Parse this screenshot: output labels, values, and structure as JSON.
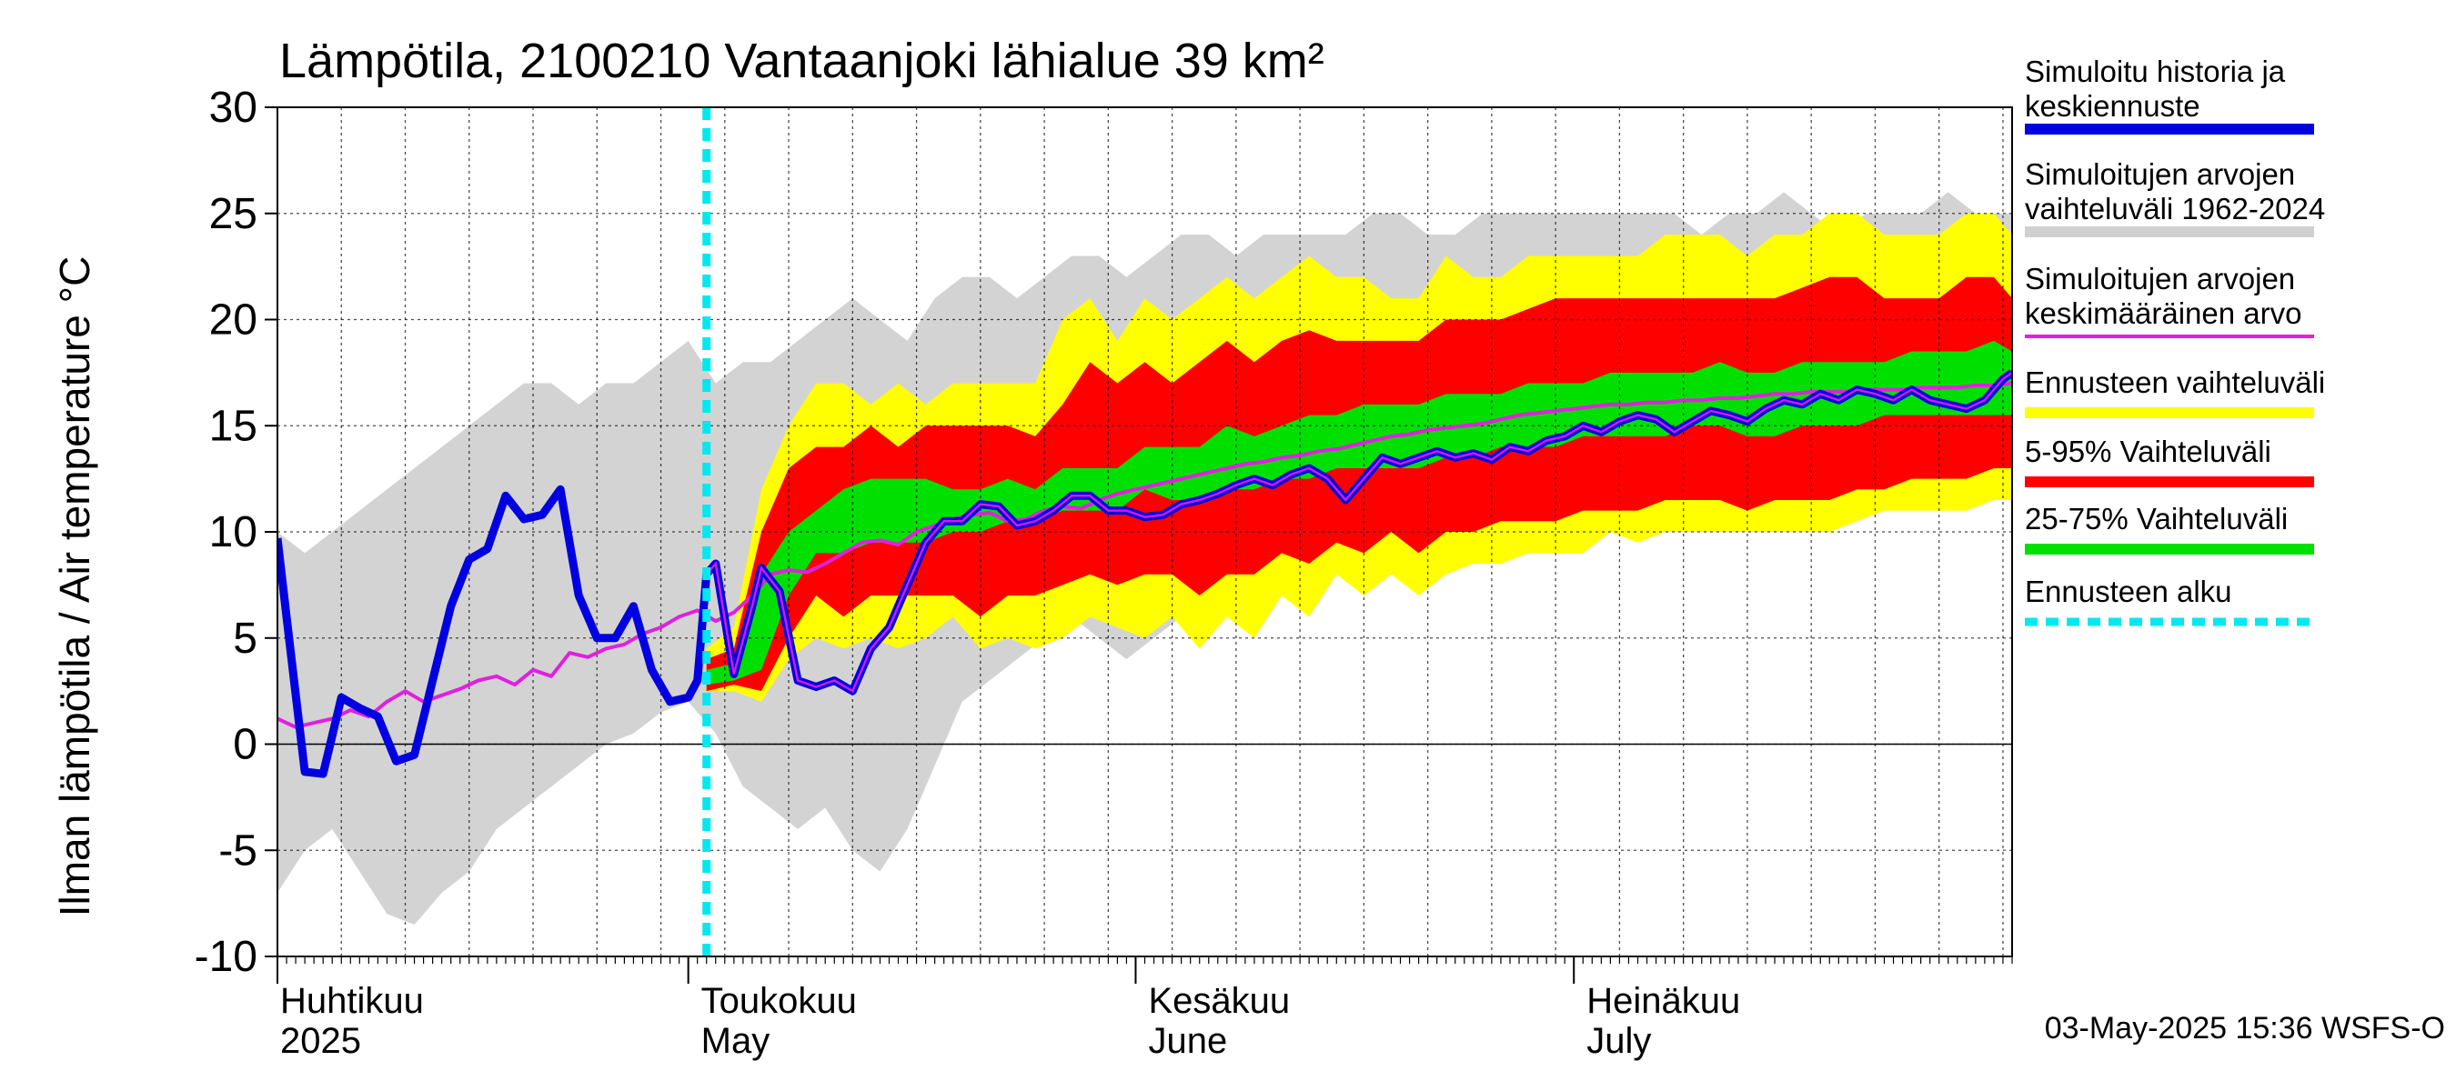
{
  "chart_data": {
    "type": "area",
    "title": "Lämpötila, 2100210 Vantaanjoki lähialue 39 km²",
    "ylabel": "Ilman lämpötila / Air temperature   °C",
    "ylim": [
      -10,
      30
    ],
    "yticks": [
      -10,
      -5,
      0,
      5,
      10,
      15,
      20,
      25,
      30
    ],
    "ytick_labels": [
      "-10",
      "-5",
      "0",
      "5",
      "10",
      "15",
      "20",
      "25",
      "30"
    ],
    "xlim_days": [
      0,
      190
    ],
    "forecast_start_day": 47,
    "month_ticks": [
      {
        "day": 0,
        "label1": "Huhtikuu",
        "label2": "2025"
      },
      {
        "day": 45,
        "label1": "Toukokuu",
        "label2": "May"
      },
      {
        "day": 94,
        "label1": "Kesäkuu",
        "label2": "June"
      },
      {
        "day": 142,
        "label1": "Heinäkuu",
        "label2": "July"
      }
    ],
    "footer": "03-May-2025 15:36 WSFS-O",
    "legend": [
      {
        "label1": "Simuloitu historia ja",
        "label2": "keskiennuste",
        "color": "#0000e0",
        "style": "thick"
      },
      {
        "label1": "Simuloitujen arvojen",
        "label2": "vaihteluväli 1962-2024",
        "color": "#d0d0d0",
        "style": "thick"
      },
      {
        "label1": "Simuloitujen arvojen",
        "label2": "keskimääräinen arvo",
        "color": "#e020e0",
        "style": "thin"
      },
      {
        "label1": "Ennusteen vaihteluväli",
        "label2": "",
        "color": "#ffff00",
        "style": "thick"
      },
      {
        "label1": "5-95% Vaihteluväli",
        "label2": "",
        "color": "#ff0000",
        "style": "thick"
      },
      {
        "label1": "25-75% Vaihteluväli",
        "label2": "",
        "color": "#00e000",
        "style": "thick"
      },
      {
        "label1": "Ennusteen alku",
        "label2": "",
        "color": "#00e8f0",
        "style": "dashed"
      }
    ],
    "colors": {
      "history_band": "#d3d3d3",
      "forecast_range": "#ffff00",
      "p5_95": "#ff0000",
      "p25_75": "#00e000",
      "median": "#0000e0",
      "mean": "#e020e0",
      "forecast_start": "#00e8f0",
      "zero_line": "#000000"
    },
    "series": {
      "history_band_x": [
        0,
        3,
        6,
        9,
        12,
        15,
        18,
        21,
        24,
        27,
        30,
        33,
        36,
        39,
        42,
        45,
        48,
        51,
        54,
        57,
        60,
        63,
        66,
        69,
        72,
        75,
        78,
        81,
        84,
        87,
        90,
        93,
        96,
        99,
        102,
        105,
        108,
        111,
        114,
        117,
        120,
        123,
        126,
        129,
        132,
        135,
        138,
        141,
        144,
        147,
        150,
        153,
        156,
        159,
        162,
        165,
        168,
        171,
        174,
        177,
        180,
        183,
        186,
        190
      ],
      "history_band_lo": [
        -7,
        -5,
        -4,
        -6,
        -8,
        -8.5,
        -7,
        -6,
        -4,
        -3,
        -2,
        -1,
        0,
        0.5,
        1.5,
        2,
        0.5,
        -2,
        -3,
        -4,
        -3,
        -5,
        -6,
        -4,
        -1,
        2,
        3,
        4,
        5,
        6,
        5,
        4,
        5,
        6,
        7,
        8,
        8,
        9,
        9,
        9,
        10,
        10,
        10,
        10,
        10,
        10,
        10,
        10,
        10,
        10,
        10,
        10,
        10,
        11,
        11,
        12,
        11,
        11,
        12,
        12,
        12,
        12,
        12,
        13
      ],
      "history_band_hi": [
        10,
        9,
        10,
        11,
        12,
        13,
        14,
        15,
        16,
        17,
        17,
        16,
        17,
        17,
        18,
        19,
        17,
        18,
        18,
        19,
        20,
        21,
        20,
        19,
        21,
        22,
        22,
        21,
        22,
        23,
        23,
        22,
        23,
        24,
        24,
        23,
        24,
        24,
        24,
        24,
        25,
        25,
        24,
        24,
        25,
        25,
        25,
        25,
        25,
        25,
        25,
        25,
        24,
        25,
        25,
        26,
        25,
        24,
        25,
        25,
        25,
        26,
        25,
        25
      ],
      "forecast_x": [
        47,
        50,
        53,
        56,
        59,
        62,
        65,
        68,
        71,
        74,
        77,
        80,
        83,
        86,
        89,
        92,
        95,
        98,
        101,
        104,
        107,
        110,
        113,
        116,
        119,
        122,
        125,
        128,
        131,
        134,
        137,
        140,
        143,
        146,
        149,
        152,
        155,
        158,
        161,
        164,
        167,
        170,
        173,
        176,
        179,
        182,
        185,
        188,
        190
      ],
      "range_lo": [
        2.5,
        2.5,
        2,
        4,
        5,
        4.5,
        5,
        4.5,
        5,
        6,
        4.5,
        5,
        4.5,
        5,
        6,
        5.5,
        5,
        6,
        4.5,
        6,
        5,
        7,
        6,
        8,
        7,
        8,
        7,
        8,
        8.5,
        8.5,
        9,
        9,
        9,
        10,
        9.5,
        10,
        10,
        10,
        10,
        10,
        10,
        10,
        10.5,
        11,
        11,
        11,
        11,
        11.5,
        11.5
      ],
      "range_hi": [
        4.5,
        5.5,
        12,
        15,
        17,
        17,
        16,
        17,
        16,
        17,
        17,
        17,
        17,
        20,
        21,
        19,
        21,
        20,
        21,
        22,
        21,
        22,
        23,
        22,
        22,
        21,
        21,
        23,
        22,
        22,
        23,
        23,
        23,
        23,
        23,
        24,
        24,
        24,
        23,
        24,
        24,
        25,
        25,
        24,
        24,
        24,
        25,
        25,
        24
      ],
      "p5_lo": [
        2.5,
        2.8,
        2.5,
        5,
        7,
        6,
        7,
        7,
        7,
        7,
        6,
        7,
        7,
        7.5,
        8,
        7.5,
        8,
        8,
        7,
        8,
        8,
        9,
        8.5,
        9.5,
        9,
        10,
        9,
        10,
        10,
        10.5,
        10.5,
        10.5,
        11,
        11,
        11,
        11.5,
        11.5,
        11.5,
        11,
        11.5,
        11.5,
        11.5,
        12,
        12,
        12.5,
        12.5,
        12.5,
        13,
        13
      ],
      "p5_hi": [
        4,
        4.5,
        10,
        13,
        14,
        14,
        15,
        14,
        15,
        15,
        15,
        15,
        14.5,
        16,
        18,
        17,
        18,
        17,
        18,
        19,
        18,
        19,
        19.5,
        19,
        19,
        19,
        19,
        20,
        20,
        20,
        20.5,
        21,
        21,
        21,
        21,
        21,
        21,
        21,
        21,
        21,
        21.5,
        22,
        22,
        21,
        21,
        21,
        22,
        22,
        21
      ],
      "p25_lo": [
        2.8,
        3,
        3.5,
        7,
        9,
        9,
        9.5,
        9.5,
        9.5,
        10,
        10,
        10.5,
        10.5,
        11,
        11,
        11,
        12,
        11.5,
        11.5,
        12,
        12,
        12.5,
        12.5,
        13,
        13,
        13,
        13,
        13.5,
        13.5,
        14,
        14,
        14,
        14.5,
        14.5,
        14.5,
        14.5,
        15,
        15,
        14.5,
        14.5,
        15,
        15,
        15,
        15.5,
        15.5,
        15.5,
        15.5,
        15.5,
        15.5
      ],
      "p25_hi": [
        3.5,
        3.8,
        8,
        10,
        11,
        12,
        12.5,
        12.5,
        12.5,
        12,
        12,
        12.5,
        12,
        13,
        13,
        13,
        14,
        14,
        14,
        15,
        14.5,
        15,
        15.5,
        15.5,
        16,
        16,
        16,
        16.5,
        16.5,
        16.5,
        17,
        17,
        17,
        17.5,
        17.5,
        17.5,
        17.5,
        18,
        17.5,
        17.5,
        18,
        18,
        18,
        18,
        18.5,
        18.5,
        18.5,
        19,
        18.5
      ],
      "median_x": [
        0,
        1,
        3,
        5,
        7,
        9,
        11,
        13,
        15,
        17,
        19,
        21,
        23,
        25,
        27,
        29,
        31,
        33,
        35,
        37,
        39,
        41,
        43,
        45,
        46,
        47,
        48,
        50,
        52,
        53,
        55,
        57,
        59,
        61,
        63,
        65,
        67,
        69,
        71,
        73,
        75,
        77,
        79,
        81,
        83,
        85,
        87,
        89,
        91,
        93,
        95,
        97,
        99,
        101,
        103,
        105,
        107,
        109,
        111,
        113,
        115,
        117,
        119,
        121,
        123,
        125,
        127,
        129,
        131,
        133,
        135,
        137,
        139,
        141,
        143,
        145,
        147,
        149,
        151,
        153,
        155,
        157,
        159,
        161,
        163,
        165,
        167,
        169,
        171,
        173,
        175,
        177,
        179,
        181,
        183,
        185,
        187,
        189,
        190
      ],
      "median_y": [
        9.7,
        6,
        -1.3,
        -1.4,
        2.2,
        1.7,
        1.3,
        -0.8,
        -0.5,
        3,
        6.5,
        8.7,
        9.2,
        11.7,
        10.6,
        10.8,
        12,
        7,
        5,
        5,
        6.5,
        3.5,
        2,
        2.2,
        3,
        8,
        8.5,
        3.3,
        6.5,
        8.3,
        7.2,
        3,
        2.7,
        3,
        2.5,
        4.5,
        5.5,
        7.5,
        9.5,
        10.5,
        10.5,
        11.3,
        11.2,
        10.3,
        10.5,
        11,
        11.7,
        11.7,
        11,
        11,
        10.7,
        10.8,
        11.3,
        11.5,
        11.8,
        12.2,
        12.5,
        12.2,
        12.7,
        13,
        12.5,
        11.5,
        12.5,
        13.5,
        13.2,
        13.5,
        13.8,
        13.5,
        13.7,
        13.4,
        14,
        13.8,
        14.3,
        14.5,
        15,
        14.7,
        15.2,
        15.5,
        15.3,
        14.7,
        15.2,
        15.7,
        15.5,
        15.2,
        15.8,
        16.2,
        16,
        16.5,
        16.2,
        16.7,
        16.5,
        16.2,
        16.7,
        16.2,
        16,
        15.8,
        16.2,
        17.2,
        17.5
      ],
      "mean_x": [
        0,
        2,
        4,
        6,
        8,
        10,
        12,
        14,
        16,
        18,
        20,
        22,
        24,
        26,
        28,
        30,
        32,
        34,
        36,
        38,
        40,
        42,
        44,
        46,
        48,
        50,
        52,
        54,
        56,
        58,
        60,
        62,
        64,
        66,
        68,
        70,
        72,
        74,
        76,
        78,
        80,
        82,
        84,
        86,
        88,
        90,
        92,
        94,
        96,
        98,
        100,
        102,
        104,
        106,
        108,
        110,
        112,
        114,
        116,
        118,
        120,
        122,
        124,
        126,
        128,
        130,
        132,
        134,
        136,
        138,
        140,
        142,
        144,
        146,
        148,
        150,
        152,
        154,
        156,
        158,
        160,
        162,
        164,
        166,
        168,
        170,
        172,
        174,
        176,
        178,
        180,
        182,
        184,
        186,
        188,
        190
      ],
      "mean_y": [
        1.2,
        0.8,
        1,
        1.2,
        1.6,
        1.3,
        2,
        2.5,
        2,
        2.3,
        2.6,
        3,
        3.2,
        2.8,
        3.5,
        3.2,
        4.3,
        4.1,
        4.5,
        4.7,
        5.2,
        5.5,
        6,
        6.3,
        5.8,
        6.2,
        7,
        8,
        8.2,
        8.1,
        8.5,
        9,
        9.5,
        9.6,
        9.4,
        10,
        10.3,
        10.6,
        10.8,
        10.9,
        10.5,
        10.6,
        11,
        11.2,
        11.1,
        11.5,
        11.8,
        12,
        12.2,
        12.4,
        12.6,
        12.8,
        13,
        13.2,
        13.3,
        13.5,
        13.6,
        13.8,
        13.9,
        14.1,
        14.3,
        14.5,
        14.6,
        14.8,
        14.9,
        15,
        15.1,
        15.3,
        15.5,
        15.6,
        15.7,
        15.8,
        15.9,
        16,
        16,
        16.1,
        16.1,
        16.2,
        16.2,
        16.3,
        16.3,
        16.4,
        16.5,
        16.5,
        16.6,
        16.6,
        16.6,
        16.7,
        16.7,
        16.7,
        16.8,
        16.8,
        16.8,
        16.9,
        16.9,
        17
      ]
    }
  }
}
